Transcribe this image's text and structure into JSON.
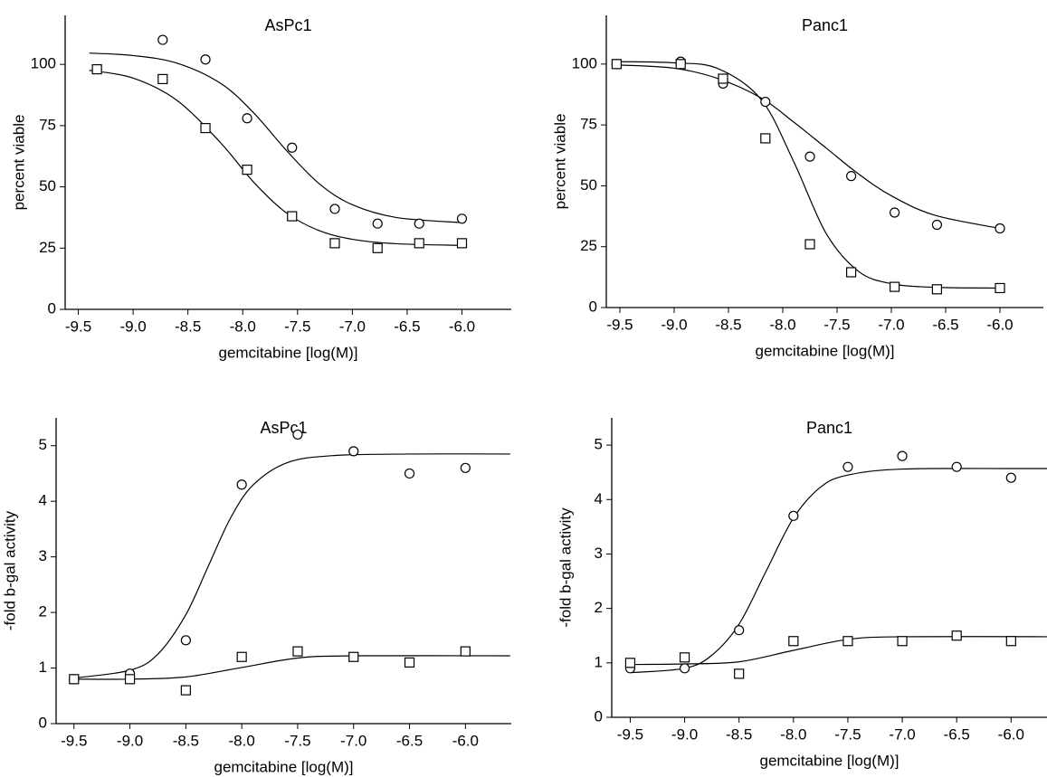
{
  "chart_data": [
    {
      "type": "scatter",
      "title": "AsPc1",
      "x_label": "gemcitabine [log(M)]",
      "y_label": "percent viable",
      "xlim": [
        -9.62,
        -5.55
      ],
      "ylim": [
        0,
        120
      ],
      "xticks": [
        -9.5,
        {
          "value": -9,
          "label": "-9.0"
        },
        -8.5,
        {
          "value": -8,
          "label": "-8.0"
        },
        -7.5,
        {
          "value": -7,
          "label": "-7.0"
        },
        -6.5,
        {
          "value": -6,
          "label": "-6.0"
        }
      ],
      "yticks": [
        0,
        25,
        50,
        75,
        100
      ],
      "grid": false,
      "x": [
        -9.33,
        -8.73,
        -8.34,
        -7.96,
        -7.55,
        -7.16,
        -6.77,
        -6.39,
        -6.0
      ],
      "series": [
        {
          "marker": "circle",
          "color": "#000000",
          "values": [
            98,
            110,
            102,
            78,
            66,
            41,
            35,
            35,
            37
          ]
        },
        {
          "marker": "square",
          "color": "#000000",
          "values": [
            98,
            94,
            74,
            57,
            38,
            27,
            25,
            27,
            27
          ]
        }
      ],
      "fits": [
        {
          "x": [
            -9.4,
            -9.0,
            -8.6,
            -8.2,
            -7.9,
            -7.6,
            -7.3,
            -7.0,
            -6.6,
            -6.0
          ],
          "values": [
            104.6,
            103.6,
            100.5,
            92.2,
            80.2,
            64.8,
            51.2,
            42.7,
            37.5,
            35.4
          ]
        },
        {
          "x": [
            -9.4,
            -9.0,
            -8.6,
            -8.2,
            -7.9,
            -7.6,
            -7.3,
            -7.0,
            -6.6,
            -6.0
          ],
          "values": [
            97.6,
            94.4,
            85.3,
            67.9,
            51.9,
            39.3,
            32.1,
            28.6,
            26.8,
            26.1
          ]
        }
      ]
    },
    {
      "type": "scatter",
      "title": "Panc1",
      "x_label": "gemcitabine [log(M)]",
      "y_label": "percent viable",
      "xlim": [
        -9.625,
        -5.6
      ],
      "ylim": [
        0,
        120
      ],
      "xticks": [
        -9.5,
        {
          "value": -9,
          "label": "-9.0"
        },
        -8.5,
        {
          "value": -8,
          "label": "-8.0"
        },
        -7.5,
        {
          "value": -7,
          "label": "-7.0"
        },
        -6.5,
        {
          "value": -6,
          "label": "-6.0"
        }
      ],
      "yticks": [
        0,
        25,
        50,
        75,
        100
      ],
      "grid": false,
      "x": [
        -9.53,
        -8.94,
        -8.55,
        -8.16,
        -7.75,
        -7.37,
        -6.97,
        -6.58,
        -6.0
      ],
      "series": [
        {
          "marker": "circle",
          "color": "#000000",
          "values": [
            100,
            101,
            92,
            84.5,
            62,
            54,
            39,
            34,
            32.5
          ]
        },
        {
          "marker": "square",
          "color": "#000000",
          "values": [
            100,
            100,
            94,
            69.5,
            26,
            14.5,
            8.5,
            7.5,
            8
          ]
        }
      ],
      "fits": [
        {
          "x": [
            -9.5,
            -9.0,
            -8.6,
            -8.2,
            -7.9,
            -7.6,
            -7.3,
            -7.0,
            -6.6,
            -6.0
          ],
          "values": [
            99.6,
            98.3,
            94.1,
            86.1,
            76.2,
            65.5,
            54.8,
            45.9,
            37.9,
            32.5
          ]
        },
        {
          "x": [
            -9.5,
            -9.0,
            -8.6,
            -8.2,
            -7.9,
            -7.6,
            -7.3,
            -7.0,
            -6.6,
            -6.0
          ],
          "values": [
            101,
            100.5,
            98.2,
            85.5,
            60,
            30.4,
            14.8,
            9.8,
            8.3,
            8.0
          ]
        }
      ]
    },
    {
      "type": "scatter",
      "title": "AsPc1",
      "x_label": "gemcitabine [log(M)]",
      "y_label": "-fold b-gal activity",
      "xlim": [
        -9.66,
        -5.59
      ],
      "ylim": [
        0,
        5.5
      ],
      "xticks": [
        -9.5,
        {
          "value": -9,
          "label": "-9.0"
        },
        -8.5,
        {
          "value": -8,
          "label": "-8.0"
        },
        -7.5,
        {
          "value": -7,
          "label": "-7.0"
        },
        -6.5,
        {
          "value": -6,
          "label": "-6.0"
        }
      ],
      "yticks": [
        0,
        1,
        2,
        3,
        4,
        5
      ],
      "grid": false,
      "x": [
        -9.5,
        -9.0,
        -8.5,
        -8.0,
        -7.5,
        -7.0,
        -6.5,
        -6.0
      ],
      "series": [
        {
          "marker": "circle",
          "color": "#000000",
          "values": [
            0.8,
            0.9,
            1.5,
            4.3,
            5.2,
            4.9,
            4.5,
            4.6
          ]
        },
        {
          "marker": "square",
          "color": "#000000",
          "values": [
            0.8,
            0.8,
            0.6,
            1.2,
            1.3,
            1.2,
            1.1,
            1.3
          ]
        }
      ],
      "fits": [
        {
          "x": [
            -9.5,
            -9.0,
            -8.75,
            -8.5,
            -8.3,
            -8.1,
            -7.9,
            -7.6,
            -7.2,
            -6.5,
            -5.6
          ],
          "values": [
            0.82,
            0.96,
            1.25,
            1.96,
            2.83,
            3.7,
            4.29,
            4.69,
            4.82,
            4.85,
            4.85
          ]
        },
        {
          "x": [
            -9.5,
            -9.0,
            -8.5,
            -8.0,
            -7.5,
            -7.0,
            -5.6
          ],
          "values": [
            0.8,
            0.8,
            0.84,
            1.01,
            1.18,
            1.22,
            1.22
          ]
        }
      ]
    },
    {
      "type": "scatter",
      "title": "Panc1",
      "x_label": "gemcitabine [log(M)]",
      "y_label": "-fold b-gal activity",
      "xlim": [
        -9.67,
        -5.67
      ],
      "ylim": [
        0,
        5.5
      ],
      "xticks": [
        -9.5,
        {
          "value": -9,
          "label": "-9.0"
        },
        -8.5,
        {
          "value": -8,
          "label": "-8.0"
        },
        -7.5,
        {
          "value": -7,
          "label": "-7.0"
        },
        -6.5,
        {
          "value": -6,
          "label": "-6.0"
        }
      ],
      "yticks": [
        0,
        1,
        2,
        3,
        4,
        5
      ],
      "grid": false,
      "x": [
        -9.5,
        -9.0,
        -8.5,
        -8.0,
        -7.5,
        -7.0,
        -6.5,
        -6.0
      ],
      "series": [
        {
          "marker": "circle",
          "color": "#000000",
          "values": [
            0.9,
            0.9,
            1.6,
            3.7,
            4.6,
            4.8,
            4.6,
            4.4
          ]
        },
        {
          "marker": "square",
          "color": "#000000",
          "values": [
            1.0,
            1.1,
            0.8,
            1.4,
            1.4,
            1.4,
            1.5,
            1.4
          ]
        }
      ],
      "fits": [
        {
          "x": [
            -9.5,
            -9.0,
            -8.75,
            -8.5,
            -8.25,
            -8.0,
            -7.75,
            -7.5,
            -7.0,
            -6.0,
            -5.67
          ],
          "values": [
            0.82,
            0.9,
            1.14,
            1.71,
            2.69,
            3.66,
            4.23,
            4.45,
            4.56,
            4.57,
            4.57
          ]
        },
        {
          "x": [
            -9.5,
            -9.0,
            -8.5,
            -8.0,
            -7.5,
            -7.0,
            -5.67
          ],
          "values": [
            0.97,
            0.98,
            1.02,
            1.23,
            1.43,
            1.48,
            1.48
          ]
        }
      ]
    }
  ]
}
